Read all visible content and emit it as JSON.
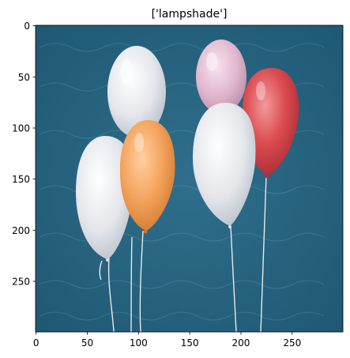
{
  "figure": {
    "title": "['lampshade']"
  },
  "image": {
    "description_name": "balloons-photo",
    "background_color": "#2f6a86",
    "balloons": [
      {
        "name": "white-balloon-top",
        "color": "#e9eaee"
      },
      {
        "name": "pink-balloon",
        "color": "#e6bfd3"
      },
      {
        "name": "red-balloon",
        "color": "#d84a4d"
      },
      {
        "name": "white-balloon-left",
        "color": "#eceae8"
      },
      {
        "name": "orange-balloon",
        "color": "#f2a15a"
      },
      {
        "name": "white-balloon-right",
        "color": "#eeeef2"
      }
    ]
  },
  "axes": {
    "x_ticks": [
      "0",
      "50",
      "100",
      "150",
      "200",
      "250"
    ],
    "y_ticks": [
      "0",
      "50",
      "100",
      "150",
      "200",
      "250"
    ],
    "x_range": [
      0,
      299
    ],
    "y_range": [
      0,
      299
    ]
  }
}
